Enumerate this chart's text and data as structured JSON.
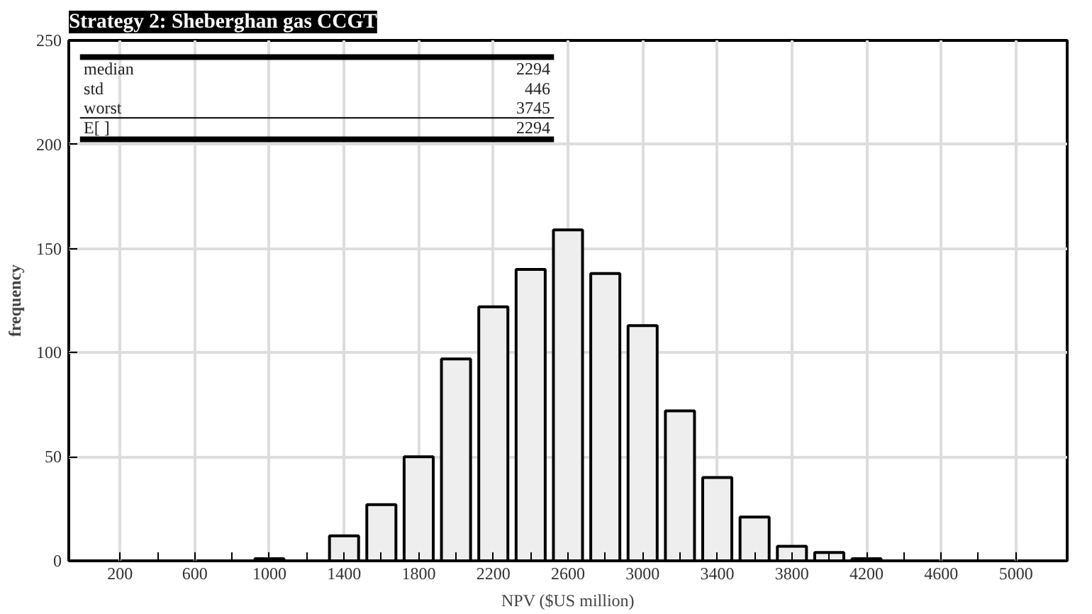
{
  "chart_data": {
    "type": "histogram",
    "title": "Strategy 2: Sheberghan gas CCGT",
    "xlabel": "NPV ($US million)",
    "ylabel": "frequency",
    "bins": [
      900,
      1100,
      1300,
      1500,
      1700,
      1900,
      2100,
      2300,
      2500,
      2700,
      2900,
      3100,
      3300,
      3500,
      3700,
      3900,
      4100,
      4300
    ],
    "values": [
      1,
      0,
      12,
      27,
      50,
      97,
      122,
      140,
      159,
      138,
      113,
      72,
      40,
      21,
      7,
      4,
      1
    ],
    "color": "#eeeeee",
    "xlim": [
      -75,
      5275
    ],
    "ylim": [
      0,
      250
    ],
    "xticks": [
      200,
      {
        "value": 400,
        "label": null
      },
      600,
      {
        "value": 800,
        "label": null
      },
      1000,
      {
        "value": 1200,
        "label": null
      },
      1400,
      {
        "value": 1600,
        "label": null
      },
      1800,
      {
        "value": 2000,
        "label": null
      },
      2200,
      {
        "value": 2400,
        "label": null
      },
      2600,
      {
        "value": 2800,
        "label": null
      },
      3000,
      {
        "value": 3200,
        "label": null
      },
      3400,
      {
        "value": 3600,
        "label": null
      },
      3800,
      {
        "value": 4000,
        "label": null
      },
      4200,
      {
        "value": 4400,
        "label": null
      },
      4600,
      {
        "value": 4800,
        "label": null
      },
      5000
    ],
    "yticks": [
      0,
      50,
      100,
      150,
      200,
      250
    ],
    "grid": true,
    "annotations": [
      "median",
      "2294",
      "std",
      "446",
      "worst",
      "3745",
      "E[ ]",
      "2294"
    ]
  }
}
